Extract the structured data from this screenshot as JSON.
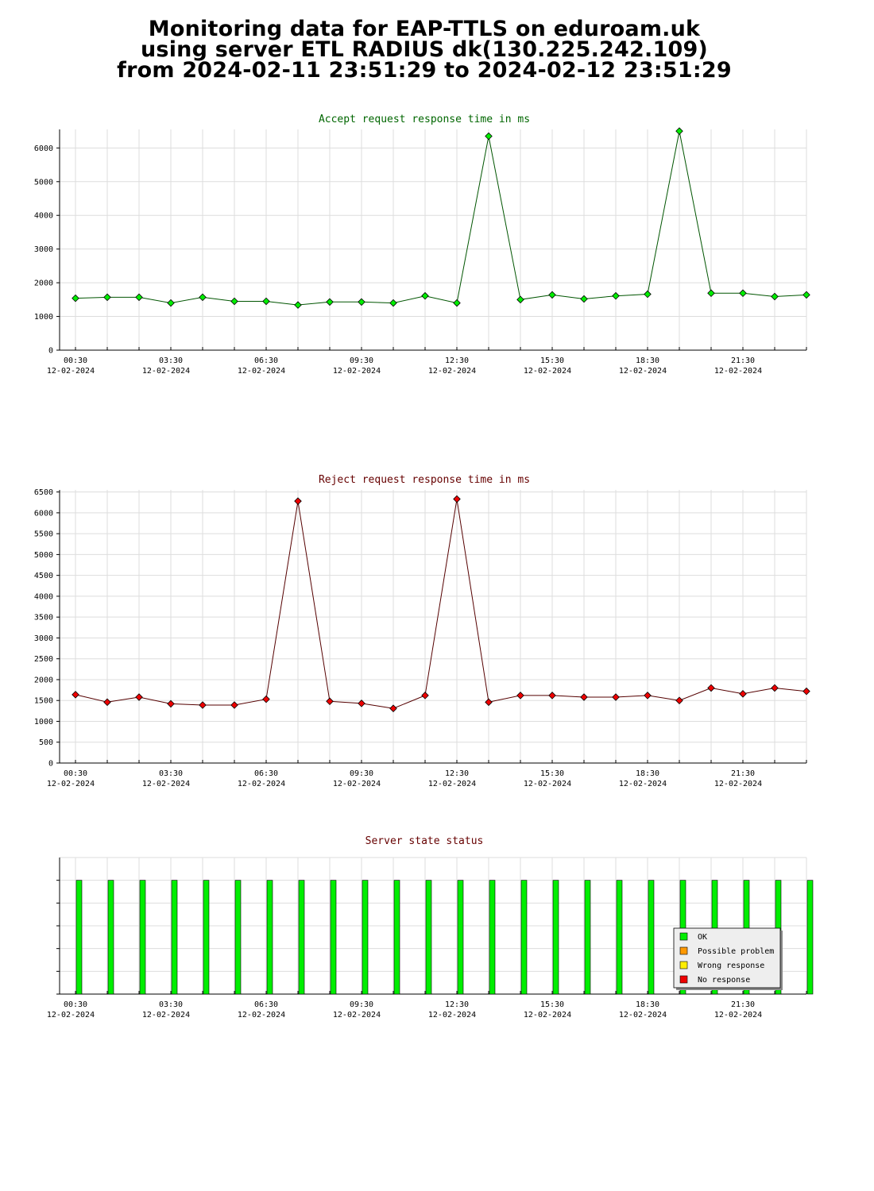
{
  "page": {
    "title_lines": [
      "Monitoring data for EAP-TTLS on eduroam.uk",
      "using server ETL RADIUS dk(130.225.242.109)",
      "from 2024-02-11 23:51:29 to 2024-02-12 23:51:29"
    ]
  },
  "colors": {
    "ok": "#00ee00",
    "possible_problem": "#ff9900",
    "wrong_response": "#ffee00",
    "no_response": "#ee0000",
    "accept_line": "#005500",
    "reject_line": "#550000",
    "accept_title": "#006600",
    "reject_title": "#660000",
    "grid": "#dddddd"
  },
  "chart_data": [
    {
      "type": "line",
      "title": "Accept request response time in ms",
      "x_ticks": [
        "00:30",
        "03:30",
        "06:30",
        "09:30",
        "12:30",
        "15:30",
        "18:30",
        "21:30"
      ],
      "x_tick_date": "12-02-2024",
      "y_ticks": [
        0,
        1000,
        2000,
        3000,
        4000,
        5000,
        6000
      ],
      "ylim": [
        0,
        6550
      ],
      "grid": true,
      "marker_color": "#00ee00",
      "line_color": "#005500",
      "series": [
        {
          "x": [
            "00:30",
            "01:30",
            "02:30",
            "03:30",
            "04:30",
            "05:30",
            "06:30",
            "07:30",
            "08:30",
            "09:30",
            "10:30",
            "11:30",
            "12:30",
            "13:30",
            "14:30",
            "15:30",
            "16:30",
            "17:30",
            "18:30",
            "19:30",
            "20:30",
            "21:30",
            "22:30",
            "23:30"
          ],
          "values": [
            1540,
            1570,
            1570,
            1400,
            1570,
            1450,
            1450,
            1340,
            1430,
            1430,
            1400,
            1610,
            1400,
            6350,
            1500,
            1640,
            1520,
            1610,
            1660,
            6500,
            1690,
            1690,
            1590,
            1640
          ]
        }
      ]
    },
    {
      "type": "line",
      "title": "Reject request response time in ms",
      "x_ticks": [
        "00:30",
        "03:30",
        "06:30",
        "09:30",
        "12:30",
        "15:30",
        "18:30",
        "21:30"
      ],
      "x_tick_date": "12-02-2024",
      "y_ticks": [
        0,
        500,
        1000,
        1500,
        2000,
        2500,
        3000,
        3500,
        4000,
        4500,
        5000,
        5500,
        6000,
        6500
      ],
      "ylim": [
        0,
        6550
      ],
      "grid": true,
      "marker_color": "#ee0000",
      "line_color": "#550000",
      "series": [
        {
          "x": [
            "00:30",
            "01:30",
            "02:30",
            "03:30",
            "04:30",
            "05:30",
            "06:30",
            "07:30",
            "08:30",
            "09:30",
            "10:30",
            "11:30",
            "12:30",
            "13:30",
            "14:30",
            "15:30",
            "16:30",
            "17:30",
            "18:30",
            "19:30",
            "20:30",
            "21:30",
            "22:30",
            "23:30"
          ],
          "values": [
            1640,
            1460,
            1580,
            1420,
            1390,
            1390,
            1530,
            6280,
            1480,
            1430,
            1310,
            1620,
            6330,
            1460,
            1620,
            1620,
            1580,
            1580,
            1620,
            1500,
            1800,
            1660,
            1800,
            1720
          ]
        }
      ]
    },
    {
      "type": "bar",
      "title": "Server state status",
      "x_ticks": [
        "00:30",
        "03:30",
        "06:30",
        "09:30",
        "12:30",
        "15:30",
        "18:30",
        "21:30"
      ],
      "x_tick_date": "12-02-2024",
      "ylim": [
        0,
        1.2
      ],
      "grid": true,
      "legend_placement": "bottom-right",
      "legend": [
        {
          "label": "OK",
          "color": "#00ee00"
        },
        {
          "label": "Possible problem",
          "color": "#ff9900"
        },
        {
          "label": "Wrong response",
          "color": "#ffee00"
        },
        {
          "label": "No response",
          "color": "#ee0000"
        }
      ],
      "series": [
        {
          "name": "OK",
          "x": [
            "00:30",
            "01:30",
            "02:30",
            "03:30",
            "04:30",
            "05:30",
            "06:30",
            "07:30",
            "08:30",
            "09:30",
            "10:30",
            "11:30",
            "12:30",
            "13:30",
            "14:30",
            "15:30",
            "16:30",
            "17:30",
            "18:30",
            "19:30",
            "20:30",
            "21:30",
            "22:30",
            "23:30"
          ],
          "values": [
            1,
            1,
            1,
            1,
            1,
            1,
            1,
            1,
            1,
            1,
            1,
            1,
            1,
            1,
            1,
            1,
            1,
            1,
            1,
            1,
            1,
            1,
            1,
            1
          ]
        }
      ]
    }
  ]
}
